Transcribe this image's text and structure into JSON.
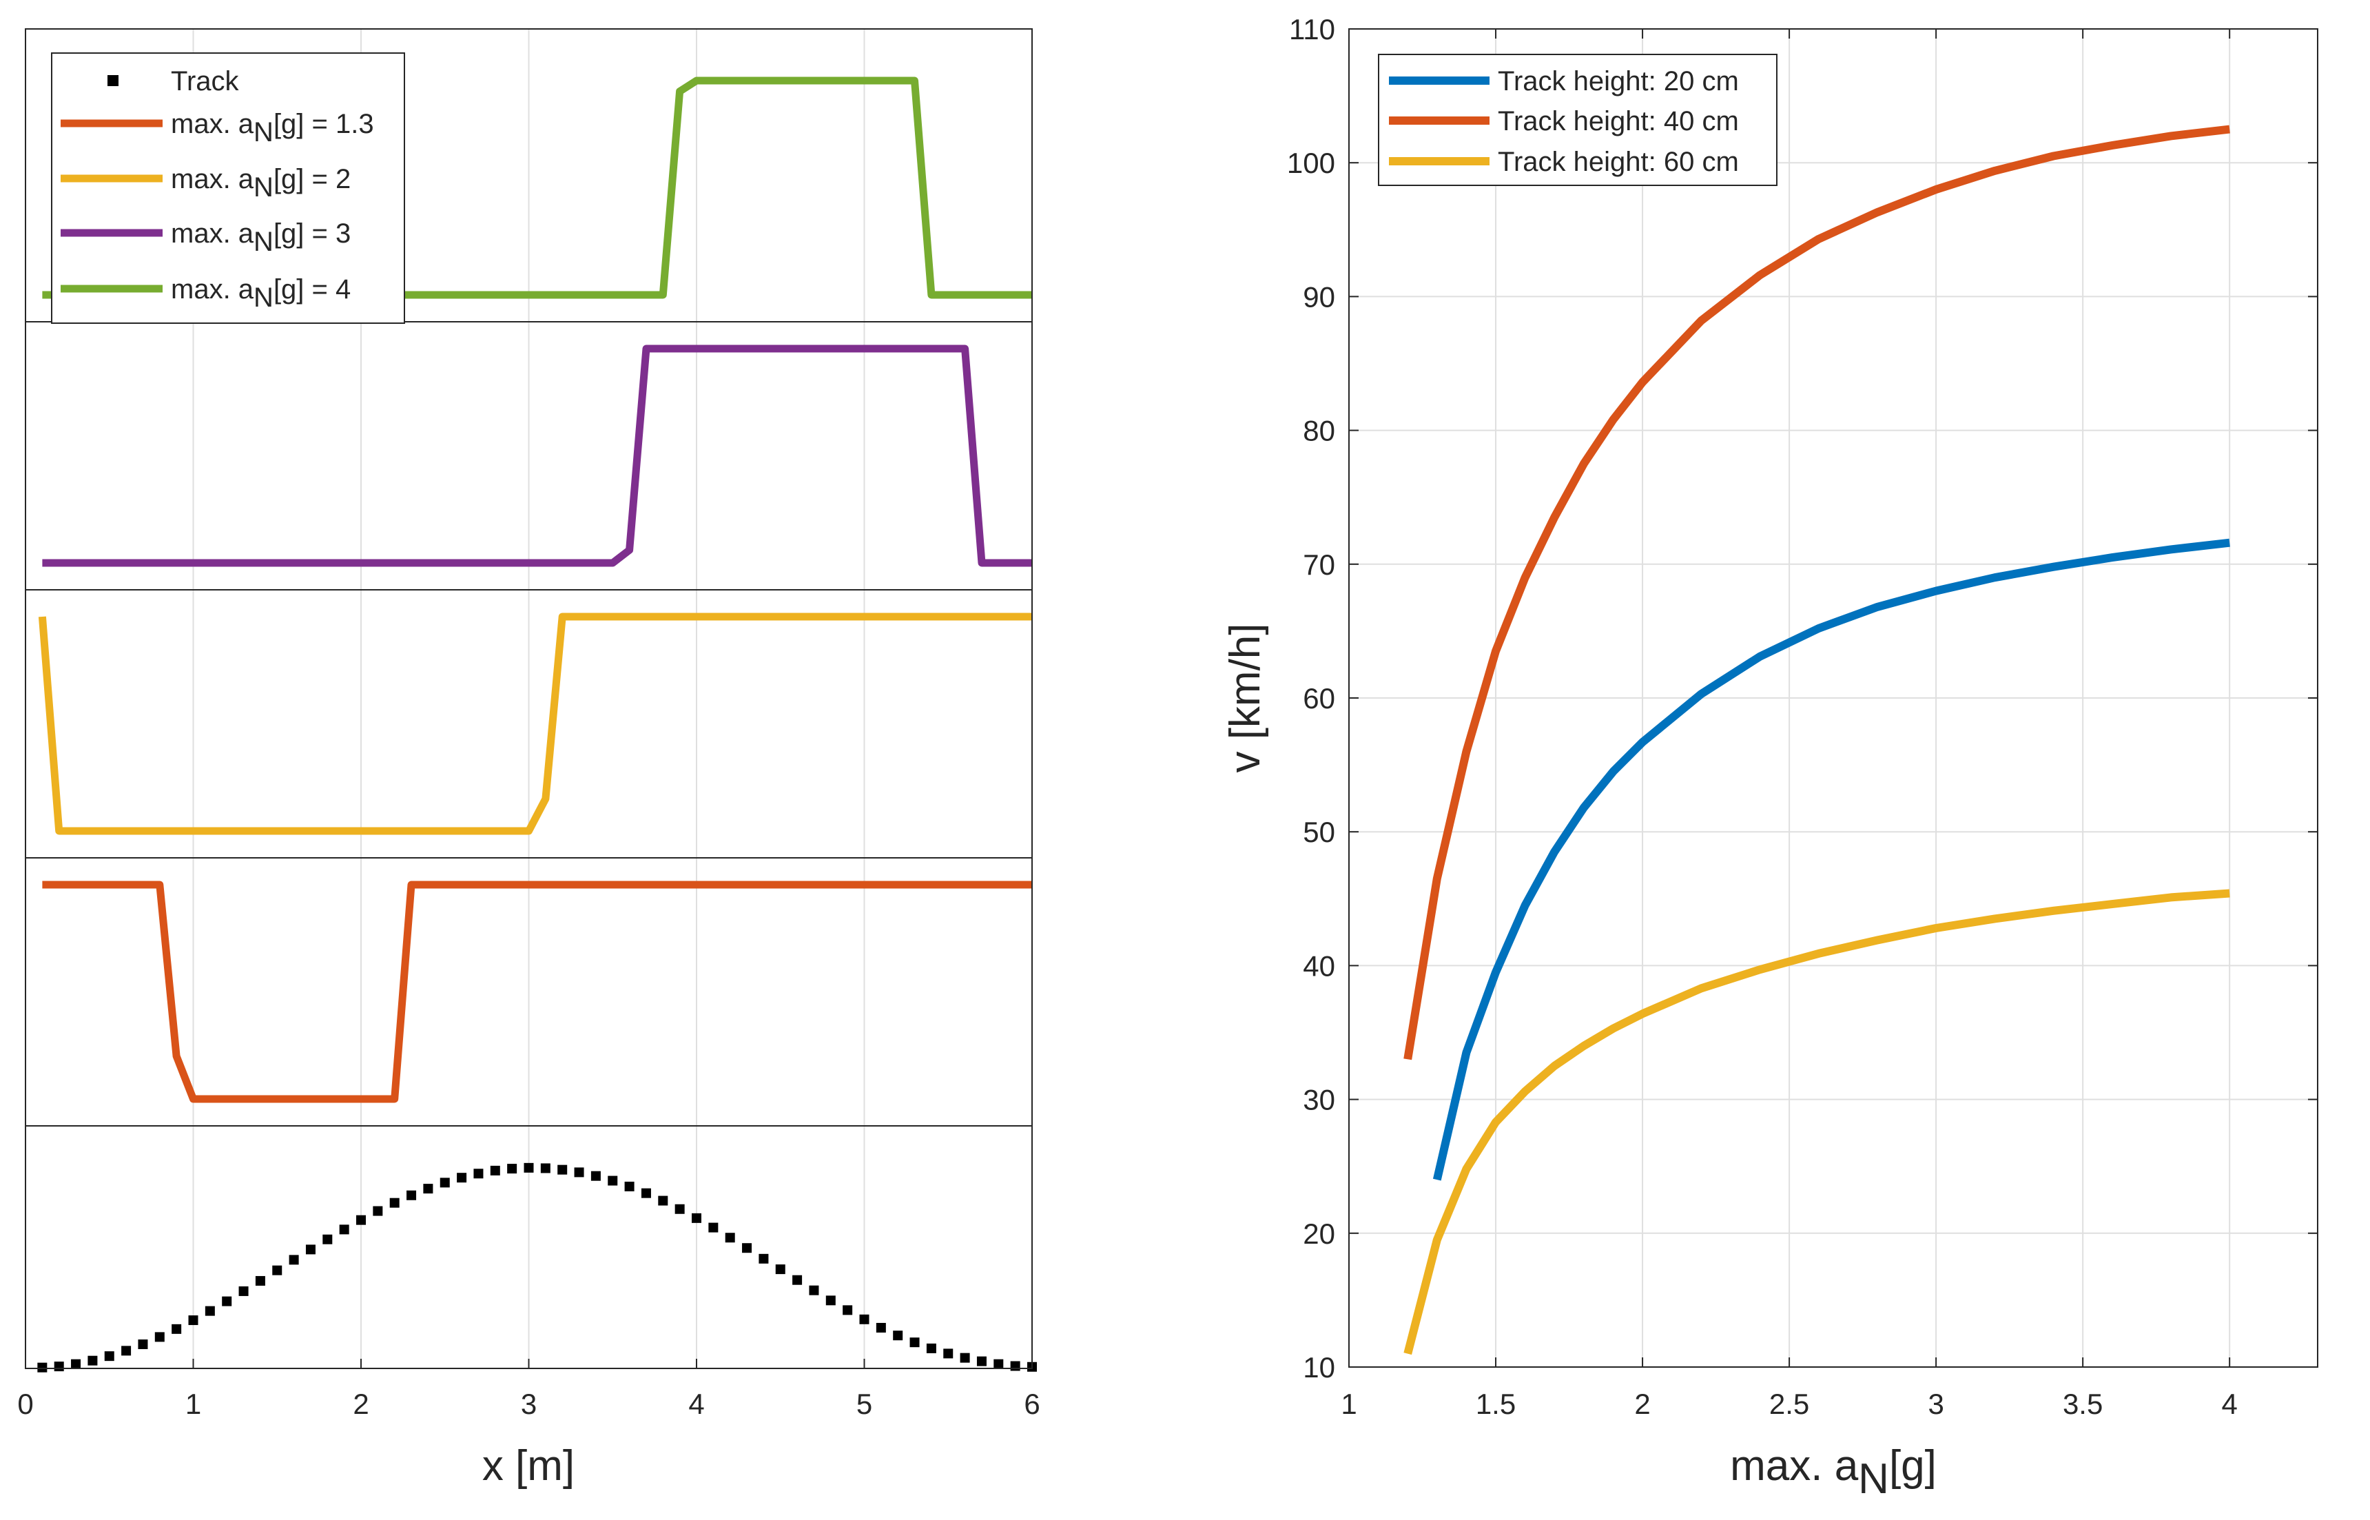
{
  "chart_data": [
    {
      "type": "line",
      "title": "",
      "xlabel": "x [m]",
      "xlim": [
        0,
        6
      ],
      "x_ticks": [
        "0",
        "1",
        "2",
        "3",
        "4",
        "5",
        "6"
      ],
      "grid": true,
      "layout": "five stacked panels sharing the x axis (top to bottom: a_N=4, a_N=3, a_N=2, a_N=1.3, Track)",
      "legend": {
        "placement": "top-left",
        "entries": [
          "Track",
          "max. a_N[g] = 1.3",
          "max. a_N[g] = 2",
          "max. a_N[g] = 3",
          "max. a_N[g] = 4"
        ]
      },
      "series": [
        {
          "name": "Track",
          "color": "#000000",
          "style": "square markers",
          "x": [
            0.1,
            0.2,
            0.3,
            0.4,
            0.5,
            0.6,
            0.7,
            0.8,
            0.9,
            1.0,
            1.1,
            1.2,
            1.3,
            1.4,
            1.5,
            1.6,
            1.7,
            1.8,
            1.9,
            2.0,
            2.1,
            2.2,
            2.3,
            2.4,
            2.5,
            2.6,
            2.7,
            2.8,
            2.9,
            3.0,
            3.1,
            3.2,
            3.3,
            3.4,
            3.5,
            3.6,
            3.7,
            3.8,
            3.9,
            4.0,
            4.1,
            4.2,
            4.3,
            4.4,
            4.5,
            4.6,
            4.7,
            4.8,
            4.9,
            5.0,
            5.1,
            5.2,
            5.3,
            5.4,
            5.5,
            5.6,
            5.7,
            5.8,
            5.9,
            6.0
          ],
          "y": [
            0.001,
            0.006,
            0.017,
            0.033,
            0.054,
            0.079,
            0.109,
            0.143,
            0.18,
            0.221,
            0.264,
            0.309,
            0.356,
            0.404,
            0.453,
            0.502,
            0.55,
            0.597,
            0.643,
            0.687,
            0.729,
            0.767,
            0.802,
            0.833,
            0.861,
            0.884,
            0.903,
            0.917,
            0.926,
            0.93,
            0.928,
            0.921,
            0.909,
            0.892,
            0.87,
            0.843,
            0.812,
            0.777,
            0.738,
            0.696,
            0.652,
            0.605,
            0.557,
            0.507,
            0.458,
            0.408,
            0.36,
            0.313,
            0.268,
            0.225,
            0.186,
            0.15,
            0.118,
            0.09,
            0.066,
            0.046,
            0.03,
            0.017,
            0.008,
            0.004
          ]
        },
        {
          "name": "max. a_N[g] = 1.3",
          "color": "#D95319",
          "x": [
            0.1,
            0.8,
            0.9,
            1.0,
            2.2,
            2.3,
            6.0
          ],
          "y": [
            1,
            1,
            0.2,
            0,
            0,
            1,
            1
          ]
        },
        {
          "name": "max. a_N[g] = 2",
          "color": "#EDB120",
          "x": [
            0.1,
            0.2,
            3.0,
            3.1,
            3.2,
            6.0
          ],
          "y": [
            1,
            0,
            0,
            0.15,
            1,
            1
          ]
        },
        {
          "name": "max. a_N[g] = 3",
          "color": "#7E2F8E",
          "x": [
            0.1,
            3.5,
            3.6,
            3.7,
            5.6,
            5.7,
            6.0
          ],
          "y": [
            0,
            0,
            0.06,
            1,
            1,
            0,
            0
          ]
        },
        {
          "name": "max. a_N[g] = 4",
          "color": "#77AC30",
          "x": [
            0.1,
            3.8,
            3.9,
            4.0,
            5.3,
            5.4,
            6.0
          ],
          "y": [
            0,
            0,
            0.95,
            1,
            1,
            0,
            0
          ]
        }
      ]
    },
    {
      "type": "line",
      "title": "",
      "xlabel": "max. a_N[g]",
      "ylabel": "v [km/h]",
      "xlim": [
        1,
        4.3
      ],
      "ylim": [
        10,
        110
      ],
      "x_ticks": [
        "1",
        "1.5",
        "2",
        "2.5",
        "3",
        "3.5",
        "4"
      ],
      "y_ticks": [
        "10",
        "20",
        "30",
        "40",
        "50",
        "60",
        "70",
        "80",
        "90",
        "100",
        "110"
      ],
      "grid": true,
      "legend": {
        "placement": "top-left",
        "entries": [
          "Track height: 20 cm",
          "Track height: 40 cm",
          "Track height: 60 cm"
        ]
      },
      "series": [
        {
          "name": "Track height: 20 cm",
          "color": "#0072BD",
          "x": [
            1.3,
            1.4,
            1.5,
            1.6,
            1.7,
            1.8,
            1.9,
            2.0,
            2.2,
            2.4,
            2.6,
            2.8,
            3.0,
            3.2,
            3.4,
            3.6,
            3.8,
            4.0
          ],
          "y": [
            24,
            33.5,
            39.5,
            44.5,
            48.5,
            51.8,
            54.5,
            56.7,
            60.3,
            63.1,
            65.2,
            66.8,
            68.0,
            69.0,
            69.8,
            70.5,
            71.1,
            71.6
          ]
        },
        {
          "name": "Track height: 40 cm",
          "color": "#D95319",
          "x": [
            1.2,
            1.3,
            1.4,
            1.5,
            1.6,
            1.7,
            1.8,
            1.9,
            2.0,
            2.2,
            2.4,
            2.6,
            2.8,
            3.0,
            3.2,
            3.4,
            3.6,
            3.8,
            4.0
          ],
          "y": [
            33,
            46.5,
            56,
            63.5,
            69,
            73.5,
            77.5,
            80.8,
            83.6,
            88.2,
            91.6,
            94.3,
            96.3,
            98.0,
            99.4,
            100.5,
            101.3,
            102.0,
            102.5
          ]
        },
        {
          "name": "Track height: 60 cm",
          "color": "#EDB120",
          "x": [
            1.2,
            1.3,
            1.4,
            1.5,
            1.6,
            1.7,
            1.8,
            1.9,
            2.0,
            2.2,
            2.4,
            2.6,
            2.8,
            3.0,
            3.2,
            3.4,
            3.6,
            3.8,
            4.0
          ],
          "y": [
            11,
            19.5,
            24.8,
            28.3,
            30.6,
            32.5,
            34.0,
            35.3,
            36.4,
            38.3,
            39.7,
            40.9,
            41.9,
            42.8,
            43.5,
            44.1,
            44.6,
            45.1,
            45.4
          ]
        }
      ]
    }
  ]
}
